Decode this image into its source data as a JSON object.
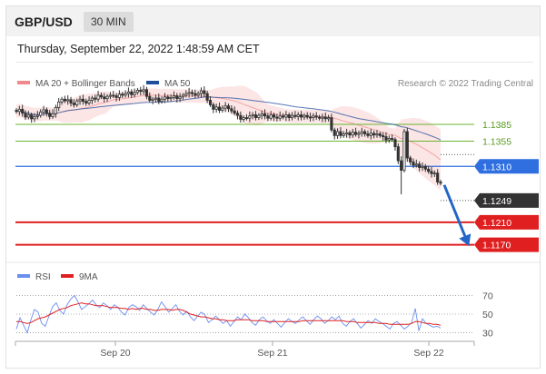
{
  "header": {
    "pair": "GBP/USD",
    "timeframe": "30 MIN"
  },
  "datetime": "Thursday, September 22, 2022 1:48:59 AM CET",
  "legend": {
    "bollinger": "MA 20 + Bollinger Bands",
    "ma50": "MA 50",
    "credit": "Research © 2022 Trading Central"
  },
  "rsi_legend": {
    "rsi": "RSI",
    "ma": "9MA"
  },
  "colors": {
    "up": "#ffffff",
    "down": "#333333",
    "bollinger": "#f08a8a",
    "ma50": "#1f4e9c",
    "resistance": "#6ab42d",
    "pivot": "#2f6fe0",
    "support": "#e02020",
    "current": "#333333",
    "rsi": "#6a8ff0",
    "rsi_ma": "#e02020",
    "arrow": "#2466c8"
  },
  "chart_data": [
    {
      "type": "candlestick",
      "title": "GBP/USD 30 MIN",
      "ylim": [
        1.1145,
        1.1445
      ],
      "x_ticks": [
        "Sep 20",
        "Sep 21",
        "Sep 22"
      ],
      "closes": [
        1.1408,
        1.1412,
        1.1405,
        1.1398,
        1.1402,
        1.1395,
        1.1399,
        1.1401,
        1.1407,
        1.1411,
        1.1405,
        1.1399,
        1.1404,
        1.1415,
        1.1425,
        1.143,
        1.1427,
        1.1429,
        1.1423,
        1.142,
        1.1427,
        1.143,
        1.1426,
        1.1423,
        1.1428,
        1.1432,
        1.143,
        1.1437,
        1.1434,
        1.1431,
        1.1435,
        1.1437,
        1.1436,
        1.1433,
        1.1439,
        1.1437,
        1.144,
        1.1443,
        1.1438,
        1.1442,
        1.1446,
        1.1444,
        1.1447,
        1.1435,
        1.1428,
        1.143,
        1.1432,
        1.1426,
        1.143,
        1.1434,
        1.1431,
        1.1433,
        1.1436,
        1.1431,
        1.1434,
        1.1437,
        1.144,
        1.1442,
        1.144,
        1.1437,
        1.144,
        1.1445,
        1.144,
        1.1428,
        1.142,
        1.1412,
        1.1416,
        1.141,
        1.1414,
        1.1418,
        1.1413,
        1.1409,
        1.1405,
        1.1401,
        1.1394,
        1.1397,
        1.1396,
        1.14,
        1.1402,
        1.1397,
        1.1401,
        1.1404,
        1.14,
        1.1396,
        1.1402,
        1.1398,
        1.1396,
        1.14,
        1.1398,
        1.1402,
        1.1397,
        1.1401,
        1.1399,
        1.1402,
        1.1398,
        1.1401,
        1.1398,
        1.1397,
        1.14,
        1.1398,
        1.1396,
        1.1398,
        1.1395,
        1.1397,
        1.1375,
        1.1365,
        1.1372,
        1.1365,
        1.1368,
        1.137,
        1.1366,
        1.1371,
        1.1367,
        1.1369,
        1.1372,
        1.1368,
        1.1365,
        1.1369,
        1.1366,
        1.1368,
        1.1365,
        1.1363,
        1.1357,
        1.136,
        1.1358,
        1.1345,
        1.132,
        1.1303,
        1.1372,
        1.1325,
        1.1318,
        1.1312,
        1.1314,
        1.1308,
        1.131,
        1.1305,
        1.1301,
        1.1297,
        1.1298,
        1.1282,
        1.128
      ],
      "current_price": 1.1249,
      "levels": {
        "resistance": [
          1.1385,
          1.1355
        ],
        "pivot": 1.131,
        "support": [
          1.121,
          1.117
        ]
      },
      "level_labels": [
        "1.1385",
        "1.1355",
        "1.1310",
        "1.1249",
        "1.1210",
        "1.1170"
      ],
      "series": [
        {
          "name": "MA 20 + Bollinger Bands"
        },
        {
          "name": "MA 50"
        }
      ]
    },
    {
      "type": "line",
      "title": "RSI",
      "ylim": [
        15,
        85
      ],
      "y_ticks": [
        "70",
        "50",
        "30"
      ],
      "series": [
        {
          "name": "RSI",
          "values": [
            34,
            46,
            38,
            30,
            44,
            55,
            52,
            40,
            37,
            48,
            58,
            62,
            54,
            50,
            60,
            66,
            70,
            63,
            55,
            58,
            61,
            65,
            60,
            57,
            62,
            59,
            55,
            60,
            57,
            52,
            49,
            57,
            60,
            58,
            54,
            60,
            56,
            52,
            49,
            55,
            63,
            58,
            52,
            56,
            60,
            53,
            49,
            53,
            47,
            43,
            48,
            52,
            49,
            41,
            44,
            48,
            44,
            40,
            43,
            37,
            42,
            47,
            44,
            50,
            46,
            41,
            38,
            44,
            47,
            43,
            40,
            44,
            40,
            36,
            41,
            45,
            42,
            40,
            44,
            47,
            43,
            39,
            44,
            48,
            45,
            40,
            43,
            47,
            44,
            48,
            40,
            37,
            42,
            45,
            40,
            35,
            39,
            43,
            40,
            45,
            42,
            40,
            37,
            34,
            40,
            42,
            38,
            34,
            37,
            41,
            56,
            32,
            45,
            40,
            38,
            36,
            37,
            35
          ]
        },
        {
          "name": "9MA",
          "values": [
            42,
            42,
            41,
            40,
            41,
            43,
            45,
            46,
            47,
            49,
            51,
            53,
            55,
            56,
            57,
            59,
            60,
            61,
            62,
            61,
            61,
            60,
            59,
            59,
            59,
            58,
            57,
            57,
            57,
            56,
            56,
            55,
            56,
            55,
            56,
            56,
            55,
            55,
            54,
            54,
            55,
            55,
            55,
            54,
            55,
            55,
            54,
            52,
            50,
            49,
            48,
            47,
            47,
            46,
            45,
            45,
            44,
            44,
            43,
            43,
            43,
            44,
            44,
            44,
            44,
            43,
            43,
            43,
            43,
            42,
            42,
            42,
            42,
            42,
            42,
            42,
            42,
            42,
            42,
            43,
            43,
            43,
            43,
            43,
            43,
            43,
            43,
            43,
            43,
            43,
            43,
            42,
            42,
            42,
            41,
            41,
            41,
            41,
            41,
            41,
            40,
            40,
            40,
            39,
            39,
            39,
            39,
            39,
            39,
            40,
            42,
            42,
            41,
            40,
            40,
            39,
            39,
            38
          ]
        }
      ]
    }
  ]
}
